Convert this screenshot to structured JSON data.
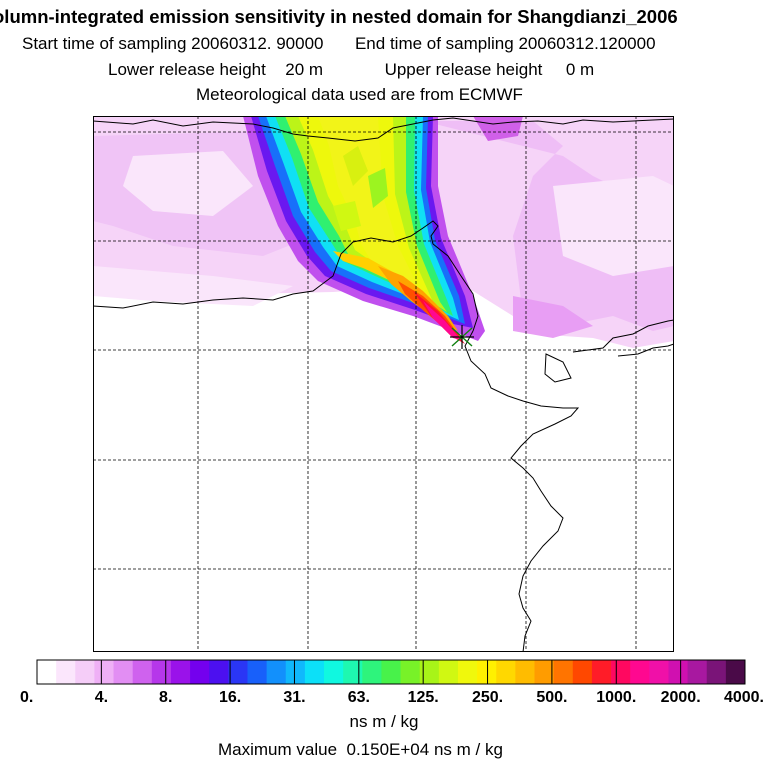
{
  "title": {
    "line1": "olumn-integrated emission sensitivity in nested domain for Shangdianzi_2006",
    "start_label": "Start time of sampling",
    "start_value": "20060312. 90000",
    "end_label": "End time of sampling",
    "end_value": "20060312.120000",
    "lower_label": "Lower release height",
    "lower_value": "20 m",
    "upper_label": "Upper release height",
    "upper_value": "0 m",
    "met": "Meteorological data used are from ECMWF"
  },
  "legend": {
    "ticks": [
      "0.",
      "4.",
      "8.",
      "16.",
      "31.",
      "63.",
      "125.",
      "250.",
      "500.",
      "1000.",
      "2000.",
      "4000."
    ],
    "colors": [
      "#ffffff",
      "#fbe6fc",
      "#f5cdf8",
      "#efb0f6",
      "#e28ef3",
      "#cf62ee",
      "#b637ea",
      "#9a12ea",
      "#7400ee",
      "#4c10f0",
      "#2a36f5",
      "#1860fa",
      "#1290fc",
      "#10b8fc",
      "#0ce0f8",
      "#10f8e0",
      "#1ef8b0",
      "#2ef47c",
      "#48f24a",
      "#78f228",
      "#a8f418",
      "#d0f812",
      "#f0f80c",
      "#fff000",
      "#ffd800",
      "#ffbc00",
      "#ff9c00",
      "#ff7400",
      "#ff4800",
      "#ff1c28",
      "#ff0860",
      "#ff0890",
      "#f010a8",
      "#d010b0",
      "#a818a0",
      "#7a1478",
      "#4a0a48"
    ],
    "unit": "ns m / kg",
    "max_label": "Maximum value",
    "max_value": "0.150E+04 ns m / kg"
  }
}
